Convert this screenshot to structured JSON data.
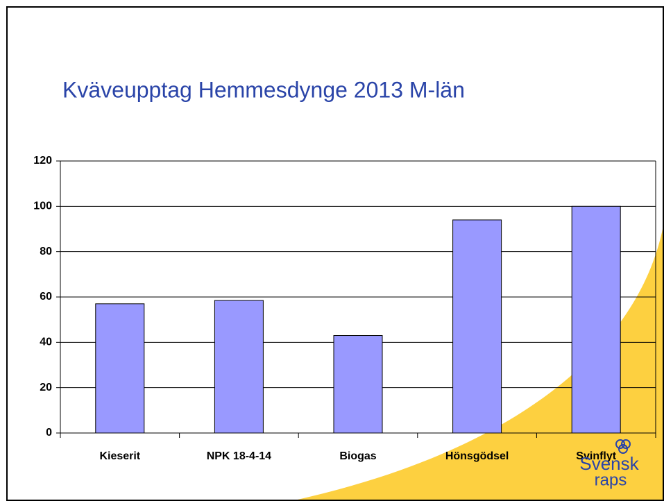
{
  "chart_data": {
    "type": "bar",
    "title": "Kväveupptag Hemmesdynge 2013 M-län",
    "categories": [
      "Kieserit",
      "NPK 18-4-14",
      "Biogas",
      "Hönsgödsel",
      "Svinflyt"
    ],
    "values": [
      57,
      58.5,
      43,
      94,
      100
    ],
    "color": "#9999ff",
    "ylim": [
      0,
      120
    ],
    "yticks": [
      0,
      20,
      40,
      60,
      80,
      100,
      120
    ],
    "grid": true
  },
  "logo": {
    "line1": "Svensk",
    "line2": "raps"
  }
}
